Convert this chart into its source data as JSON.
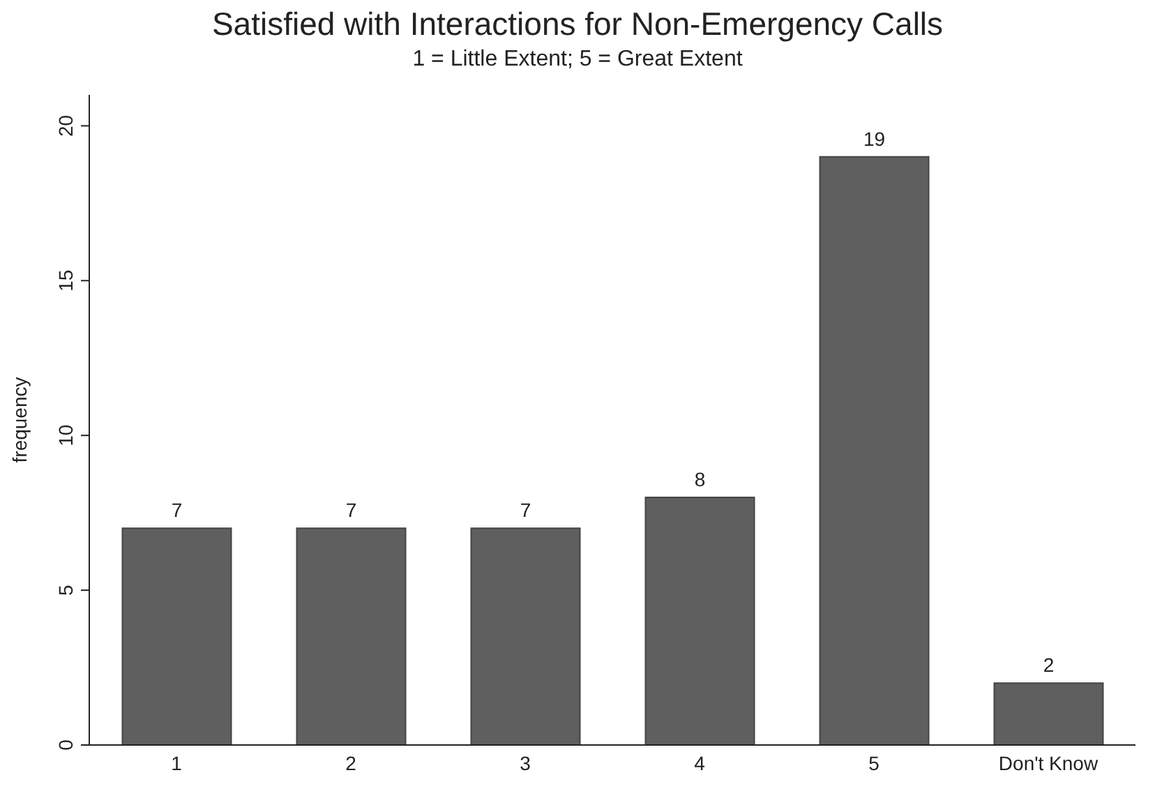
{
  "chart_data": {
    "type": "bar",
    "title": "Satisfied with Interactions for Non-Emergency Calls",
    "subtitle": "1 = Little Extent; 5 = Great Extent",
    "ylabel": "frequency",
    "categories": [
      "1",
      "2",
      "3",
      "4",
      "5",
      "Don't Know"
    ],
    "values": [
      7,
      7,
      7,
      8,
      19,
      2
    ],
    "color": "#5f5f5f",
    "ylim": [
      0,
      21
    ],
    "yticks": [
      0,
      5,
      10,
      15,
      20
    ],
    "data_labels": true
  }
}
